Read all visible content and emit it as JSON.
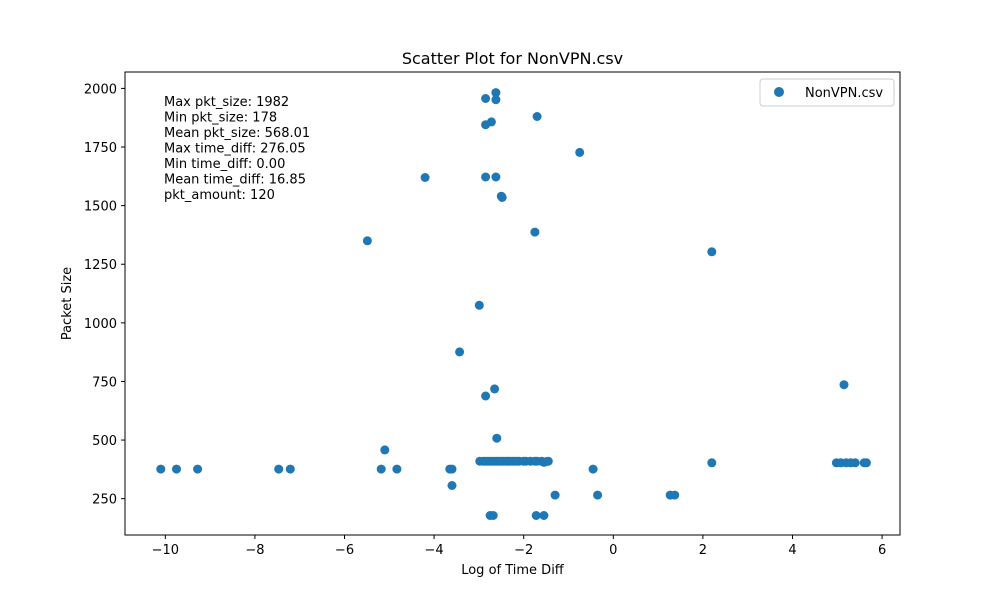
{
  "chart_data": {
    "type": "scatter",
    "title": "Scatter Plot for NonVPN.csv",
    "xlabel": "Log of Time Diff",
    "ylabel": "Packet Size",
    "xlim": [
      -10.9,
      6.4
    ],
    "ylim": [
      95,
      2070
    ],
    "xticks": [
      -10,
      -8,
      -6,
      -4,
      -2,
      0,
      2,
      4,
      6
    ],
    "yticks": [
      250,
      500,
      750,
      1000,
      1250,
      1500,
      1750,
      2000
    ],
    "grid": false,
    "legend_position": "top-right",
    "color": "#1f77b4",
    "stats_text": [
      "Max pkt_size: 1982",
      "Min pkt_size: 178",
      "Mean pkt_size: 568.01",
      "Max time_diff: 276.05",
      "Min time_diff: 0.00",
      "Mean time_diff: 16.85",
      "pkt_amount: 120"
    ],
    "series": [
      {
        "name": "NonVPN.csv",
        "points": [
          [
            -10.1,
            376
          ],
          [
            -9.75,
            376
          ],
          [
            -9.28,
            376
          ],
          [
            -7.47,
            376
          ],
          [
            -7.21,
            376
          ],
          [
            -5.18,
            376
          ],
          [
            -4.83,
            376
          ],
          [
            -3.65,
            376
          ],
          [
            -3.6,
            376
          ],
          [
            -0.45,
            376
          ],
          [
            -5.1,
            458
          ],
          [
            -3.6,
            306
          ],
          [
            -5.49,
            1350
          ],
          [
            -4.2,
            1620
          ],
          [
            -2.99,
            1075
          ],
          [
            -3.43,
            876
          ],
          [
            -2.85,
            1957
          ],
          [
            -2.62,
            1982
          ],
          [
            -2.62,
            1952
          ],
          [
            -2.72,
            1857
          ],
          [
            -2.85,
            1845
          ],
          [
            -1.7,
            1880
          ],
          [
            -0.75,
            1727
          ],
          [
            -2.85,
            1622
          ],
          [
            -2.62,
            1622
          ],
          [
            -2.5,
            1540
          ],
          [
            -2.48,
            1535
          ],
          [
            -1.75,
            1387
          ],
          [
            2.2,
            1303
          ],
          [
            5.15,
            736
          ],
          [
            -2.65,
            718
          ],
          [
            -2.85,
            688
          ],
          [
            -2.6,
            508
          ],
          [
            -2.98,
            410
          ],
          [
            -2.9,
            410
          ],
          [
            -2.85,
            410
          ],
          [
            -2.8,
            410
          ],
          [
            -2.75,
            410
          ],
          [
            -2.7,
            410
          ],
          [
            -2.65,
            410
          ],
          [
            -2.6,
            410
          ],
          [
            -2.55,
            410
          ],
          [
            -2.5,
            410
          ],
          [
            -2.45,
            410
          ],
          [
            -2.4,
            410
          ],
          [
            -2.35,
            410
          ],
          [
            -2.3,
            410
          ],
          [
            -2.25,
            410
          ],
          [
            -2.2,
            410
          ],
          [
            -2.15,
            410
          ],
          [
            -2.1,
            410
          ],
          [
            -2.0,
            410
          ],
          [
            -1.95,
            410
          ],
          [
            -1.85,
            410
          ],
          [
            -1.75,
            410
          ],
          [
            -1.7,
            410
          ],
          [
            -1.6,
            410
          ],
          [
            -1.55,
            405
          ],
          [
            -1.5,
            408
          ],
          [
            -1.45,
            410
          ],
          [
            -2.75,
            178
          ],
          [
            -2.68,
            178
          ],
          [
            -1.72,
            178
          ],
          [
            -1.55,
            178
          ],
          [
            -1.3,
            265
          ],
          [
            -0.35,
            265
          ],
          [
            1.27,
            265
          ],
          [
            1.37,
            265
          ],
          [
            2.2,
            403
          ],
          [
            4.98,
            403
          ],
          [
            5.08,
            403
          ],
          [
            5.2,
            403
          ],
          [
            5.3,
            403
          ],
          [
            5.4,
            403
          ],
          [
            5.6,
            403
          ],
          [
            5.65,
            403
          ]
        ]
      }
    ]
  }
}
